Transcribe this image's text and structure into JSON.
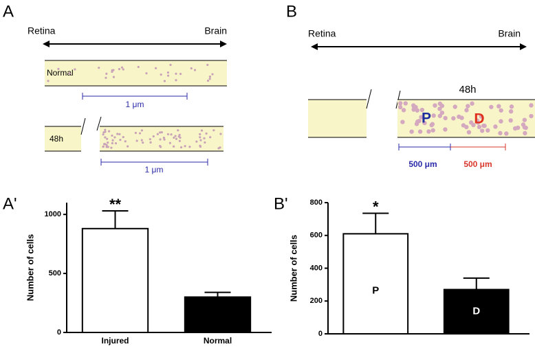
{
  "diagram_a": {
    "panel_label": "A",
    "left": "Retina",
    "right": "Brain",
    "normal_label": "Normal",
    "normal_scale": "1 μm",
    "injured_label": "48h",
    "injured_scale": "1 μm"
  },
  "diagram_b": {
    "panel_label": "B",
    "left": "Retina",
    "right": "Brain",
    "injured_label": "48h",
    "proximal": "P",
    "distal": "D",
    "proximal_scale": "500 μm",
    "distal_scale": "500 μm"
  },
  "chart_data": [
    {
      "type": "bar",
      "panel_label": "A'",
      "ylabel": "Number of cells",
      "categories": [
        "Injured",
        "Normal"
      ],
      "values": [
        880,
        300
      ],
      "errors": [
        150,
        40
      ],
      "colors": [
        "#ffffff",
        "#000000"
      ],
      "significance": "**",
      "ylim": [
        0,
        1100
      ],
      "yticks": [
        0,
        500,
        1000
      ]
    },
    {
      "type": "bar",
      "panel_label": "B'",
      "ylabel": "Number of cells",
      "categories": [
        "P",
        "D"
      ],
      "values": [
        610,
        270
      ],
      "errors": [
        125,
        70
      ],
      "colors": [
        "#ffffff",
        "#000000"
      ],
      "significance": "*",
      "ylim": [
        0,
        800
      ],
      "yticks": [
        0,
        200,
        400,
        600,
        800
      ]
    }
  ]
}
